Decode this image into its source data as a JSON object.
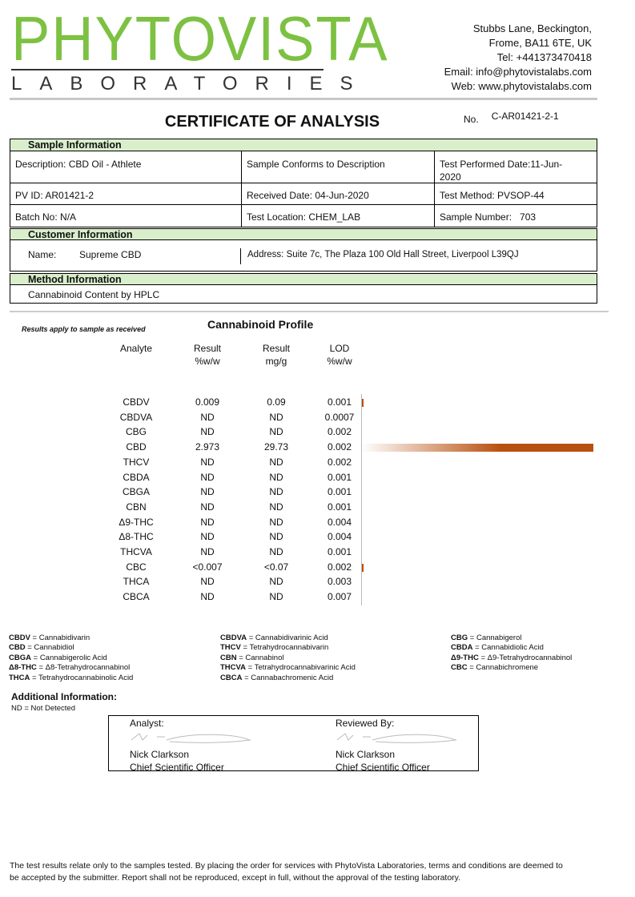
{
  "logo": {
    "name": "PHYTOVISTA",
    "sub": "LABORATORIES",
    "color": "#7dc142"
  },
  "address": [
    "Stubbs Lane, Beckington,",
    "Frome, BA11 6TE, UK",
    "Tel: +441373470418",
    "Email: info@phytovistalabs.com",
    "Web: www.phytovistalabs.com"
  ],
  "title": "CERTIFICATE OF ANALYSIS",
  "cert_no_label": "No.",
  "cert_no": "C-AR01421-2-1",
  "sample": {
    "header": "Sample Information",
    "description": "Description: CBD Oil - Athlete",
    "conforms": "Sample Conforms to Description",
    "test_date": "Test Performed Date:11-Jun-2020",
    "pv_id": "PV ID: AR01421-2",
    "received": "Received Date: 04-Jun-2020",
    "method": "Test Method: PVSOP-44",
    "batch": "Batch No: N/A",
    "location": "Test Location: CHEM_LAB",
    "sample_number": "Sample Number:   703"
  },
  "customer": {
    "header": "Customer Information",
    "name_label": "Name:",
    "name": "Supreme CBD",
    "address": "Address: Suite 7c, The Plaza 100 Old Hall Street, Liverpool L39QJ"
  },
  "method": {
    "header": "Method Information",
    "value": "Cannabinoid Content by HPLC"
  },
  "results_note": "Results apply to sample as received",
  "profile": {
    "title": "Cannabinoid Profile",
    "columns": [
      [
        "Analyte",
        ""
      ],
      [
        "Result",
        "%w/w"
      ],
      [
        "Result",
        "mg/g"
      ],
      [
        "LOD",
        "%w/w"
      ]
    ],
    "rows": [
      [
        "CBDV",
        "0.009",
        "0.09",
        "0.001"
      ],
      [
        "CBDVA",
        "ND",
        "ND",
        "0.0007"
      ],
      [
        "CBG",
        "ND",
        "ND",
        "0.002"
      ],
      [
        "CBD",
        "2.973",
        "29.73",
        "0.002"
      ],
      [
        "THCV",
        "ND",
        "ND",
        "0.002"
      ],
      [
        "CBDA",
        "ND",
        "ND",
        "0.001"
      ],
      [
        "CBGA",
        "ND",
        "ND",
        "0.001"
      ],
      [
        "CBN",
        "ND",
        "ND",
        "0.001"
      ],
      [
        "Δ9-THC",
        "ND",
        "ND",
        "0.004"
      ],
      [
        "Δ8-THC",
        "ND",
        "ND",
        "0.004"
      ],
      [
        "THCVA",
        "ND",
        "ND",
        "0.001"
      ],
      [
        "CBC",
        "<0.007",
        "<0.07",
        "0.002"
      ],
      [
        "THCA",
        "ND",
        "ND",
        "0.003"
      ],
      [
        "CBCA",
        "ND",
        "ND",
        "0.007"
      ]
    ],
    "bar_color": "#b8500f"
  },
  "legend": [
    [
      [
        "CBDV",
        "Cannabidivarin"
      ],
      [
        "CBD",
        "Cannabidiol"
      ],
      [
        "CBGA",
        "Cannabigerolic Acid"
      ],
      [
        "Δ8-THC",
        "Δ8-Tetrahydrocannabinol"
      ],
      [
        "THCA",
        "Tetrahydrocannabinolic Acid"
      ]
    ],
    [
      [
        "CBDVA",
        "Cannabidivarinic Acid"
      ],
      [
        "THCV",
        "Tetrahydrocannabivarin"
      ],
      [
        "CBN",
        "Cannabinol"
      ],
      [
        "THCVA",
        "Tetrahydrocannabivarinic Acid"
      ],
      [
        "CBCA",
        "Cannabachromenic Acid"
      ]
    ],
    [
      [
        "CBG",
        "Cannabigerol"
      ],
      [
        "CBDA",
        "Cannabidiolic Acid"
      ],
      [
        "Δ9-THC",
        "Δ9-Tetrahydrocannabinol"
      ],
      [
        "CBC",
        "Cannabichromene"
      ]
    ]
  ],
  "additional": {
    "title": "Additional Information:",
    "note": "ND = Not Detected"
  },
  "signatures": [
    {
      "role": "Analyst:",
      "name": "Nick Clarkson",
      "position": "Chief Scientific Officer"
    },
    {
      "role": "Reviewed By:",
      "name": "Nick Clarkson",
      "position": "Chief Scientific Officer"
    }
  ],
  "footer": "The test results relate only to the samples tested.  By placing the order for services with PhytoVista Laboratories, terms and conditions are deemed to be accepted by the submitter. Report shall not be reproduced, except in full, without the approval of the testing laboratory."
}
